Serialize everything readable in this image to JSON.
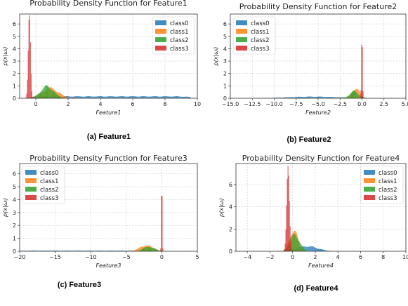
{
  "chart_data": [
    {
      "type": "histogram",
      "title": "Probability Density Function for Feature1",
      "caption": "(a)    Feature1",
      "xlabel": "Feature1",
      "ylabel": "p(x|ω_i)",
      "xlim": [
        -1,
        10
      ],
      "ylim": [
        0,
        6.8
      ],
      "xticks": [
        0,
        2,
        4,
        6,
        8,
        10
      ],
      "yticks": [
        0,
        1,
        2,
        3,
        4,
        5,
        6
      ],
      "grid": true,
      "legend_position": "top-right",
      "series": [
        {
          "name": "class0",
          "color": "#1f77b4",
          "dist": "uniform",
          "lo": -0.3,
          "hi": 9.6,
          "peak": 0.15
        },
        {
          "name": "class1",
          "color": "#ff7f0e",
          "dist": "normal",
          "mu": 0.9,
          "sigma": 0.5,
          "peak": 0.8
        },
        {
          "name": "class2",
          "color": "#2ca02c",
          "dist": "normal",
          "mu": 0.7,
          "sigma": 0.4,
          "peak": 0.95
        },
        {
          "name": "class3",
          "color": "#d62728",
          "dist": "normal",
          "mu": -0.4,
          "sigma": 0.07,
          "peak": 6.2
        }
      ]
    },
    {
      "type": "histogram",
      "title": "Probability Density Function for Feature2",
      "caption": "(b) Feature2",
      "xlabel": "Feature2",
      "ylabel": "p(x|ω_i)",
      "xlim": [
        -15,
        5
      ],
      "ylim": [
        0,
        6.8
      ],
      "xticks": [
        -15.0,
        -12.5,
        -10.0,
        -7.5,
        -5.0,
        -2.5,
        0.0,
        2.5,
        5.0
      ],
      "yticks": [
        0,
        1,
        2,
        3,
        4,
        5,
        6
      ],
      "grid": true,
      "legend_position": "top-left",
      "series": [
        {
          "name": "class0",
          "color": "#1f77b4",
          "dist": "normal",
          "mu": -5.5,
          "sigma": 3.0,
          "peak": 0.13
        },
        {
          "name": "class1",
          "color": "#ff7f0e",
          "dist": "normal",
          "mu": -0.7,
          "sigma": 0.45,
          "peak": 0.75
        },
        {
          "name": "class2",
          "color": "#2ca02c",
          "dist": "normal",
          "mu": -0.9,
          "sigma": 0.5,
          "peak": 0.55
        },
        {
          "name": "class3",
          "color": "#d62728",
          "dist": "normal",
          "mu": 0.0,
          "sigma": 0.06,
          "peak": 5.2
        }
      ]
    },
    {
      "type": "histogram",
      "title": "Probability Density Function for Feature3",
      "caption": "(c) Feature3",
      "xlabel": "Feature3",
      "ylabel": "p(x|ω_i)",
      "xlim": [
        -20,
        5
      ],
      "ylim": [
        0,
        6.8
      ],
      "xticks": [
        -20,
        -15,
        -10,
        -5,
        0,
        5
      ],
      "yticks": [
        0,
        1,
        2,
        3,
        4,
        5,
        6
      ],
      "grid": true,
      "legend_position": "top-left",
      "series": [
        {
          "name": "class0",
          "color": "#1f77b4",
          "dist": "uniform",
          "lo": -20,
          "hi": 0,
          "peak": 0.05
        },
        {
          "name": "class1",
          "color": "#ff7f0e",
          "dist": "normal",
          "mu": -2.2,
          "sigma": 0.9,
          "peak": 0.45
        },
        {
          "name": "class2",
          "color": "#2ca02c",
          "dist": "normal",
          "mu": -1.8,
          "sigma": 0.8,
          "peak": 0.35
        },
        {
          "name": "class3",
          "color": "#d62728",
          "dist": "normal",
          "mu": 0.0,
          "sigma": 0.06,
          "peak": 5.6
        }
      ]
    },
    {
      "type": "histogram",
      "title": "Probability Density Function for Feature4",
      "caption": "(d) Feature4",
      "xlabel": "Feature4",
      "ylabel": "p(x|ω_i)",
      "xlim": [
        -5,
        10
      ],
      "ylim": [
        0,
        7.9
      ],
      "xticks": [
        -4,
        -2,
        0,
        2,
        4,
        6,
        8,
        10
      ],
      "yticks": [
        0,
        2,
        4,
        6
      ],
      "grid": true,
      "legend_position": "top-right",
      "series": [
        {
          "name": "class0",
          "color": "#1f77b4",
          "dist": "normal",
          "mu": 1.3,
          "sigma": 0.9,
          "peak": 0.45
        },
        {
          "name": "class1",
          "color": "#ff7f0e",
          "dist": "normal",
          "mu": 0.1,
          "sigma": 0.35,
          "peak": 1.9
        },
        {
          "name": "class2",
          "color": "#2ca02c",
          "dist": "normal",
          "mu": 0.2,
          "sigma": 0.4,
          "peak": 1.5
        },
        {
          "name": "class3",
          "color": "#d62728",
          "dist": "normal",
          "mu": -0.4,
          "sigma": 0.12,
          "peak": 6.9
        }
      ]
    }
  ]
}
